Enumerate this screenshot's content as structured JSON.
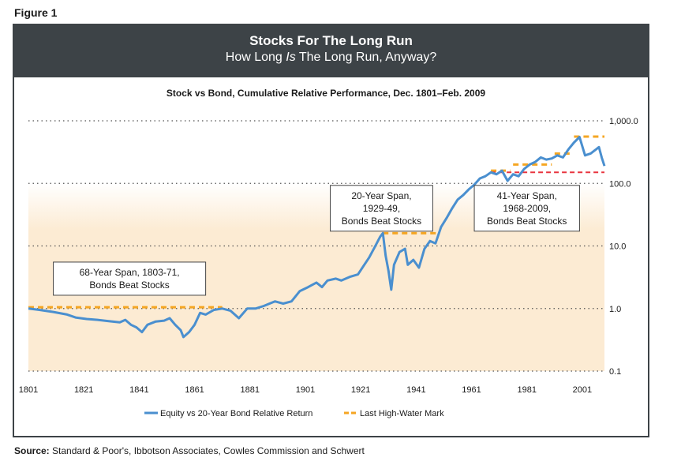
{
  "figure_label": "Figure 1",
  "banner": {
    "title": "Stocks For The Long Run",
    "subtitle_pre": "How Long ",
    "subtitle_em": "Is",
    "subtitle_post": " The Long Run, Anyway?"
  },
  "source": {
    "label": "Source:",
    "text": " Standard & Poor's, Ibbotson Associates, Cowles Commission and Schwert"
  },
  "colors": {
    "frame": "#3d4347",
    "series": "#4a8fcf",
    "high_water": "#f5a623",
    "red_line": "#e8343f",
    "band": "#fcebd3"
  },
  "chart_data": {
    "type": "line",
    "title": "Stock vs Bond, Cumulative Relative Performance, Dec. 1801–Feb. 2009",
    "xlabel": "",
    "ylabel": "",
    "x_ticks": [
      "1801",
      "1821",
      "1841",
      "1861",
      "1881",
      "1901",
      "1921",
      "1941",
      "1961",
      "1981",
      "2001"
    ],
    "y_ticks": [
      {
        "value": 1000,
        "label": "1,000.0"
      },
      {
        "value": 100,
        "label": "100.0"
      },
      {
        "value": 10,
        "label": "10.0"
      },
      {
        "value": 1,
        "label": "1.0"
      },
      {
        "value": 0.1,
        "label": "0.1"
      }
    ],
    "xlim": [
      1801,
      2009
    ],
    "ylim": [
      0.1,
      1000
    ],
    "y_scale": "log",
    "grid": "horizontal dotted",
    "legend": "bottom-center",
    "series": [
      {
        "name": "Equity vs 20-Year Bond Relative Return",
        "points": [
          [
            1801,
            1.0
          ],
          [
            1805,
            0.95
          ],
          [
            1810,
            0.88
          ],
          [
            1815,
            0.8
          ],
          [
            1818,
            0.72
          ],
          [
            1822,
            0.68
          ],
          [
            1826,
            0.66
          ],
          [
            1830,
            0.63
          ],
          [
            1834,
            0.6
          ],
          [
            1836,
            0.66
          ],
          [
            1838,
            0.55
          ],
          [
            1840,
            0.5
          ],
          [
            1842,
            0.42
          ],
          [
            1844,
            0.55
          ],
          [
            1847,
            0.62
          ],
          [
            1850,
            0.64
          ],
          [
            1852,
            0.7
          ],
          [
            1854,
            0.55
          ],
          [
            1856,
            0.45
          ],
          [
            1857,
            0.35
          ],
          [
            1859,
            0.42
          ],
          [
            1861,
            0.55
          ],
          [
            1863,
            0.85
          ],
          [
            1865,
            0.8
          ],
          [
            1868,
            0.95
          ],
          [
            1871,
            1.0
          ],
          [
            1874,
            0.92
          ],
          [
            1877,
            0.7
          ],
          [
            1880,
            1.0
          ],
          [
            1883,
            1.0
          ],
          [
            1886,
            1.1
          ],
          [
            1890,
            1.3
          ],
          [
            1893,
            1.2
          ],
          [
            1896,
            1.3
          ],
          [
            1899,
            1.9
          ],
          [
            1902,
            2.2
          ],
          [
            1905,
            2.6
          ],
          [
            1907,
            2.2
          ],
          [
            1909,
            2.8
          ],
          [
            1912,
            3.0
          ],
          [
            1914,
            2.8
          ],
          [
            1917,
            3.2
          ],
          [
            1920,
            3.5
          ],
          [
            1922,
            4.8
          ],
          [
            1924,
            6.5
          ],
          [
            1926,
            9.5
          ],
          [
            1928,
            14.0
          ],
          [
            1929,
            16.0
          ],
          [
            1930,
            7.0
          ],
          [
            1931,
            4.0
          ],
          [
            1932,
            2.0
          ],
          [
            1933,
            5.0
          ],
          [
            1935,
            8.0
          ],
          [
            1937,
            9.0
          ],
          [
            1938,
            5.0
          ],
          [
            1940,
            6.0
          ],
          [
            1942,
            4.5
          ],
          [
            1944,
            9.0
          ],
          [
            1946,
            12.0
          ],
          [
            1948,
            11.0
          ],
          [
            1950,
            20.0
          ],
          [
            1952,
            28.0
          ],
          [
            1954,
            40.0
          ],
          [
            1956,
            55.0
          ],
          [
            1958,
            65.0
          ],
          [
            1960,
            80.0
          ],
          [
            1962,
            95.0
          ],
          [
            1964,
            120.0
          ],
          [
            1966,
            130.0
          ],
          [
            1968,
            150.0
          ],
          [
            1970,
            140.0
          ],
          [
            1972,
            160.0
          ],
          [
            1974,
            110.0
          ],
          [
            1976,
            140.0
          ],
          [
            1978,
            130.0
          ],
          [
            1980,
            170.0
          ],
          [
            1982,
            200.0
          ],
          [
            1984,
            220.0
          ],
          [
            1986,
            260.0
          ],
          [
            1988,
            240.0
          ],
          [
            1990,
            250.0
          ],
          [
            1992,
            280.0
          ],
          [
            1994,
            260.0
          ],
          [
            1996,
            350.0
          ],
          [
            1998,
            450.0
          ],
          [
            2000,
            550.0
          ],
          [
            2002,
            280.0
          ],
          [
            2004,
            300.0
          ],
          [
            2006,
            350.0
          ],
          [
            2007,
            380.0
          ],
          [
            2008,
            260.0
          ],
          [
            2009,
            190.0
          ]
        ]
      },
      {
        "name": "Last High-Water Mark",
        "segments": [
          {
            "x": [
              1801,
              1871
            ],
            "y": 1.05
          },
          {
            "x": [
              1929,
              1949
            ],
            "y": 16.0
          },
          {
            "x": [
              1968,
              1975
            ],
            "y": 160.0
          },
          {
            "x": [
              1976,
              1990
            ],
            "y": 200.0
          },
          {
            "x": [
              1991,
              1997
            ],
            "y": 300.0
          },
          {
            "x": [
              1998,
              2009
            ],
            "y": 560.0
          }
        ]
      }
    ],
    "reference_lines": [
      {
        "x": [
          1968,
          2009
        ],
        "y": 150.0
      }
    ],
    "annotations": [
      {
        "lines": [
          "68-Year Span, 1803-71,",
          "Bonds Beat Stocks"
        ],
        "x0": 1810,
        "x1": 1865,
        "y_center": 3.0
      },
      {
        "lines": [
          "20-Year Span,",
          "1929-49,",
          "Bonds Beat Stocks"
        ],
        "x0": 1910,
        "x1": 1947,
        "y_center": 40.0
      },
      {
        "lines": [
          "41-Year Span,",
          "1968-2009,",
          "Bonds Beat Stocks"
        ],
        "x0": 1962,
        "x1": 2000,
        "y_center": 40.0
      }
    ]
  }
}
